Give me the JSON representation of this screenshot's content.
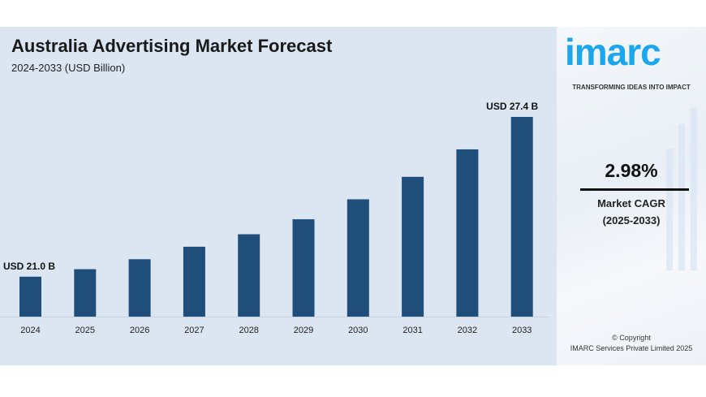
{
  "chart_data": {
    "type": "bar",
    "title": "Australia Advertising Market Forecast",
    "subtitle": "2024-2033 (USD Billion)",
    "categories": [
      "2024",
      "2025",
      "2026",
      "2027",
      "2028",
      "2029",
      "2030",
      "2031",
      "2032",
      "2033"
    ],
    "values": [
      21.0,
      21.3,
      21.7,
      22.2,
      22.7,
      23.3,
      24.1,
      25.0,
      26.1,
      27.4
    ],
    "data_labels": {
      "2024": "USD 21.0 B",
      "2033": "USD 27.4 B"
    },
    "ylim": [
      19.4,
      27.4
    ],
    "grid": false,
    "bar_color": "#1f4e7a",
    "background_color": "#dce5f2"
  },
  "side": {
    "logo": "imarc",
    "tagline": "TRANSFORMING IDEAS INTO IMPACT",
    "cagr_value": "2.98%",
    "cagr_label": "Market CAGR",
    "cagr_period": "(2025-2033)",
    "copyright": "© Copyright",
    "copyright_owner": "IMARC Services Private Limited 2025",
    "brand_color": "#1ba6ee"
  }
}
